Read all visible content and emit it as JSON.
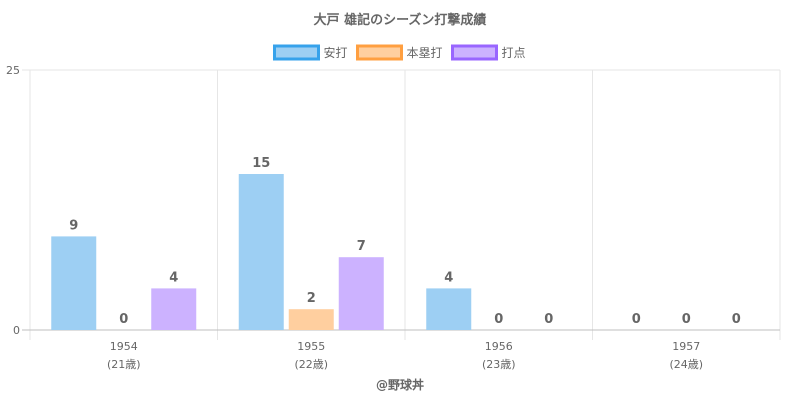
{
  "chart_data": {
    "type": "bar",
    "title": "大戸 雄記のシーズン打撃成績",
    "categories": [
      "1954",
      "1955",
      "1956",
      "1957"
    ],
    "category_sublabels": [
      "(21歳)",
      "(22歳)",
      "(23歳)",
      "(24歳)"
    ],
    "series": [
      {
        "name": "安打",
        "values": [
          9,
          15,
          4,
          0
        ],
        "fill": "#9dcff3",
        "stroke": "#36a2eb"
      },
      {
        "name": "本塁打",
        "values": [
          0,
          2,
          0,
          0
        ],
        "fill": "#ffcf9f",
        "stroke": "#ff9f40"
      },
      {
        "name": "打点",
        "values": [
          4,
          7,
          0,
          0
        ],
        "fill": "#ccb2ff",
        "stroke": "#9966ff"
      }
    ],
    "y_ticks": [
      "25",
      "0"
    ],
    "ylim": [
      0,
      25
    ],
    "legend_position": "top",
    "grid": true,
    "footer": "@野球丼"
  }
}
